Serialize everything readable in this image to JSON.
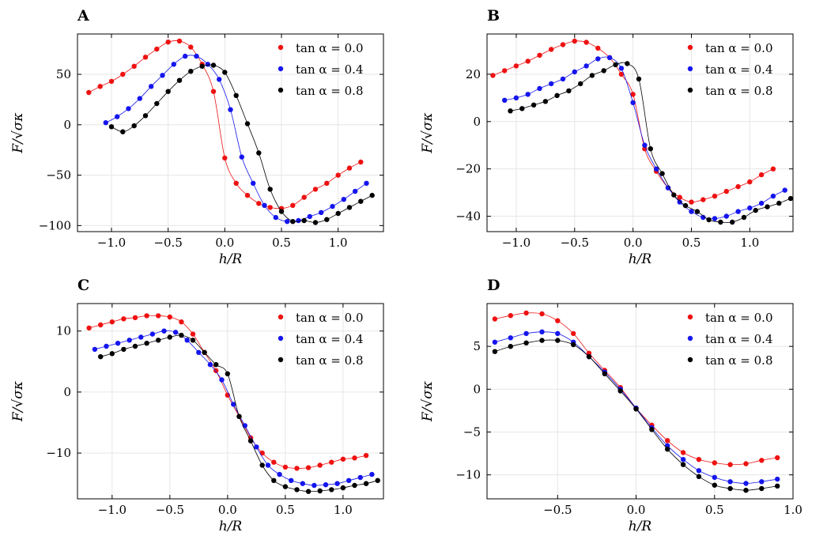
{
  "colors": {
    "red": "#ee1111",
    "blue": "#1515ee",
    "black": "#000000"
  },
  "chart_data": [
    {
      "panel": "A",
      "type": "line",
      "xlabel": "h/R",
      "ylabel": "F/√σκ",
      "xlim": [
        -1.3,
        1.4
      ],
      "ylim": [
        -106,
        90
      ],
      "xticks": [
        -1.0,
        -0.5,
        0.0,
        0.5,
        1.0
      ],
      "xtick_labels": [
        "−1.0",
        "−0.5",
        "0.0",
        "0.5",
        "1.0"
      ],
      "yticks": [
        -100,
        -50,
        0,
        50
      ],
      "ytick_labels": [
        "−100",
        "−50",
        "0",
        "50"
      ],
      "legend_position": "top-right",
      "series": [
        {
          "name": "tan α = 0.0",
          "color": "#ee1111",
          "x": [
            -1.2,
            -1.1,
            -1.0,
            -0.9,
            -0.8,
            -0.7,
            -0.6,
            -0.5,
            -0.4,
            -0.3,
            -0.2,
            -0.1,
            0.0,
            0.1,
            0.2,
            0.3,
            0.4,
            0.5,
            0.6,
            0.7,
            0.8,
            0.9,
            1.0,
            1.1,
            1.2
          ],
          "y": [
            32,
            38,
            43,
            50,
            58,
            67,
            75,
            82,
            83,
            77,
            60,
            33,
            -33,
            -58,
            -70,
            -78,
            -82,
            -83,
            -80,
            -72,
            -64,
            -58,
            -50,
            -43,
            -37
          ]
        },
        {
          "name": "tan α = 0.4",
          "color": "#1515ee",
          "x": [
            -1.05,
            -0.95,
            -0.85,
            -0.75,
            -0.65,
            -0.55,
            -0.45,
            -0.35,
            -0.25,
            -0.15,
            -0.05,
            0.05,
            0.15,
            0.25,
            0.35,
            0.45,
            0.55,
            0.65,
            0.75,
            0.85,
            0.95,
            1.05,
            1.15,
            1.25
          ],
          "y": [
            2,
            8,
            16,
            26,
            38,
            49,
            60,
            68,
            68,
            60,
            45,
            15,
            -32,
            -58,
            -80,
            -92,
            -96,
            -95,
            -91,
            -87,
            -81,
            -74,
            -66,
            -58
          ]
        },
        {
          "name": "tan α = 0.8",
          "color": "#000000",
          "x": [
            -1.0,
            -0.9,
            -0.8,
            -0.7,
            -0.6,
            -0.5,
            -0.4,
            -0.3,
            -0.2,
            -0.1,
            0.0,
            0.1,
            0.2,
            0.3,
            0.4,
            0.5,
            0.6,
            0.7,
            0.8,
            0.9,
            1.0,
            1.1,
            1.2,
            1.3
          ],
          "y": [
            -2,
            -7,
            -1,
            9,
            21,
            33,
            44,
            53,
            58,
            59,
            52,
            29,
            1,
            -28,
            -64,
            -86,
            -96,
            -95,
            -97,
            -94,
            -88,
            -82,
            -76,
            -70
          ]
        }
      ]
    },
    {
      "panel": "B",
      "type": "line",
      "xlabel": "h/R",
      "ylabel": "F/√σκ",
      "xlim": [
        -1.25,
        1.37
      ],
      "ylim": [
        -46.5,
        37
      ],
      "xticks": [
        -1.0,
        -0.5,
        0.0,
        0.5,
        1.0
      ],
      "xtick_labels": [
        "−1.0",
        "−0.5",
        "0.0",
        "0.5",
        "1.0"
      ],
      "yticks": [
        -40,
        -20,
        0,
        20
      ],
      "ytick_labels": [
        "−40",
        "−20",
        "0",
        "20"
      ],
      "legend_position": "top-right",
      "series": [
        {
          "name": "tan α = 0.0",
          "color": "#ee1111",
          "x": [
            -1.2,
            -1.1,
            -1.0,
            -0.9,
            -0.8,
            -0.7,
            -0.6,
            -0.5,
            -0.4,
            -0.3,
            -0.2,
            -0.1,
            0.0,
            0.1,
            0.2,
            0.3,
            0.4,
            0.5,
            0.6,
            0.7,
            0.8,
            0.9,
            1.0,
            1.1,
            1.2
          ],
          "y": [
            19.5,
            21.5,
            23.5,
            25.5,
            28,
            30.5,
            32.5,
            34,
            33.5,
            31,
            27,
            20,
            11.5,
            -11.5,
            -21,
            -28,
            -32,
            -34,
            -33,
            -31.5,
            -29.5,
            -27.5,
            -25.5,
            -22.5,
            -20
          ]
        },
        {
          "name": "tan α = 0.4",
          "color": "#1515ee",
          "x": [
            -1.1,
            -1.0,
            -0.9,
            -0.8,
            -0.7,
            -0.6,
            -0.5,
            -0.4,
            -0.3,
            -0.2,
            -0.1,
            0.0,
            0.1,
            0.2,
            0.3,
            0.4,
            0.5,
            0.6,
            0.7,
            0.8,
            0.9,
            1.0,
            1.1,
            1.2,
            1.3
          ],
          "y": [
            9,
            10,
            11.5,
            14,
            16,
            18,
            21,
            23.5,
            26.5,
            27,
            22.5,
            8,
            -10,
            -20,
            -28,
            -34,
            -38,
            -40.5,
            -41,
            -40,
            -38,
            -36.5,
            -34.5,
            -31.5,
            -29
          ]
        },
        {
          "name": "tan α = 0.8",
          "color": "#000000",
          "x": [
            -1.05,
            -0.95,
            -0.85,
            -0.75,
            -0.65,
            -0.55,
            -0.45,
            -0.35,
            -0.25,
            -0.15,
            -0.05,
            0.05,
            0.15,
            0.25,
            0.35,
            0.45,
            0.55,
            0.65,
            0.75,
            0.85,
            0.95,
            1.05,
            1.15,
            1.25,
            1.35
          ],
          "y": [
            4.5,
            5.5,
            7,
            8.5,
            11,
            13,
            16,
            19.5,
            21.5,
            24,
            24.5,
            18,
            -11.5,
            -22,
            -31,
            -35.5,
            -38,
            -41.5,
            -42.5,
            -42.5,
            -40.5,
            -37.5,
            -36,
            -34.5,
            -32.5
          ]
        }
      ]
    },
    {
      "panel": "C",
      "type": "line",
      "xlabel": "h/R",
      "ylabel": "F/√σκ",
      "xlim": [
        -1.3,
        1.35
      ],
      "ylim": [
        -17.5,
        14.5
      ],
      "xticks": [
        -1.0,
        -0.5,
        0.0,
        0.5,
        1.0
      ],
      "xtick_labels": [
        "−1.0",
        "−0.5",
        "0.0",
        "0.5",
        "1.0"
      ],
      "yticks": [
        -10,
        0,
        10
      ],
      "ytick_labels": [
        "−10",
        "0",
        "10"
      ],
      "legend_position": "top-right",
      "series": [
        {
          "name": "tan α = 0.0",
          "color": "#ee1111",
          "x": [
            -1.2,
            -1.1,
            -1.0,
            -0.9,
            -0.8,
            -0.7,
            -0.6,
            -0.5,
            -0.4,
            -0.3,
            -0.2,
            -0.1,
            0.0,
            0.1,
            0.2,
            0.3,
            0.4,
            0.5,
            0.6,
            0.7,
            0.8,
            0.9,
            1.0,
            1.1,
            1.2
          ],
          "y": [
            10.5,
            11,
            11.5,
            12,
            12.2,
            12.5,
            12.5,
            12.3,
            11.5,
            9.5,
            6.5,
            3.5,
            -0.5,
            -4,
            -7.5,
            -10,
            -11.5,
            -12.3,
            -12.5,
            -12.4,
            -12,
            -11.5,
            -11,
            -10.8,
            -10.4
          ]
        },
        {
          "name": "tan α = 0.4",
          "color": "#1515ee",
          "x": [
            -1.15,
            -1.05,
            -0.95,
            -0.85,
            -0.75,
            -0.65,
            -0.55,
            -0.45,
            -0.35,
            -0.25,
            -0.15,
            -0.05,
            0.05,
            0.15,
            0.25,
            0.35,
            0.45,
            0.55,
            0.65,
            0.75,
            0.85,
            0.95,
            1.05,
            1.15,
            1.25
          ],
          "y": [
            7,
            7.5,
            8,
            8.5,
            9,
            9.5,
            10,
            9.8,
            8.5,
            6.5,
            4.5,
            2,
            -2,
            -5.5,
            -9,
            -12,
            -13.5,
            -14.5,
            -15,
            -15.3,
            -15.2,
            -15,
            -14.5,
            -14,
            -13.5
          ]
        },
        {
          "name": "tan α = 0.8",
          "color": "#000000",
          "x": [
            -1.1,
            -1.0,
            -0.9,
            -0.8,
            -0.7,
            -0.6,
            -0.5,
            -0.4,
            -0.3,
            -0.2,
            -0.1,
            0.0,
            0.1,
            0.2,
            0.3,
            0.4,
            0.5,
            0.6,
            0.7,
            0.8,
            0.9,
            1.0,
            1.1,
            1.2,
            1.3
          ],
          "y": [
            5.8,
            6.3,
            7,
            7.5,
            8,
            8.5,
            9,
            9.3,
            8.5,
            6.5,
            4.5,
            3,
            -4,
            -8,
            -12,
            -14.5,
            -15.5,
            -16,
            -16.3,
            -16.2,
            -16,
            -15.7,
            -15.3,
            -15,
            -14.5
          ]
        }
      ]
    },
    {
      "panel": "D",
      "type": "line",
      "xlabel": "h/R",
      "ylabel": "F/√σκ",
      "xlim": [
        -0.95,
        1.0
      ],
      "ylim": [
        -12.8,
        10
      ],
      "xticks": [
        -0.5,
        0.0,
        0.5,
        1.0
      ],
      "xtick_labels": [
        "−0.5",
        "0.0",
        "0.5",
        "1.0"
      ],
      "yticks": [
        -10,
        -5,
        0,
        5
      ],
      "ytick_labels": [
        "−10",
        "−5",
        "0",
        "5"
      ],
      "legend_position": "top-right",
      "series": [
        {
          "name": "tan α = 0.0",
          "color": "#ee1111",
          "x": [
            -0.9,
            -0.8,
            -0.7,
            -0.6,
            -0.5,
            -0.4,
            -0.3,
            -0.2,
            -0.1,
            0.0,
            0.1,
            0.2,
            0.3,
            0.4,
            0.5,
            0.6,
            0.7,
            0.8,
            0.9
          ],
          "y": [
            8.2,
            8.6,
            8.9,
            8.8,
            8,
            6.5,
            4.2,
            2.2,
            0.2,
            -2.2,
            -4.2,
            -6,
            -7.4,
            -8.2,
            -8.6,
            -8.8,
            -8.7,
            -8.3,
            -8
          ]
        },
        {
          "name": "tan α = 0.4",
          "color": "#1515ee",
          "x": [
            -0.9,
            -0.8,
            -0.7,
            -0.6,
            -0.5,
            -0.4,
            -0.3,
            -0.2,
            -0.1,
            0.0,
            0.1,
            0.2,
            0.3,
            0.4,
            0.5,
            0.6,
            0.7,
            0.8,
            0.9
          ],
          "y": [
            5.5,
            6,
            6.5,
            6.7,
            6.5,
            5.5,
            3.8,
            2,
            0,
            -2.2,
            -4.5,
            -6.6,
            -8.2,
            -9.5,
            -10.3,
            -10.8,
            -11,
            -10.8,
            -10.5
          ]
        },
        {
          "name": "tan α = 0.8",
          "color": "#000000",
          "x": [
            -0.9,
            -0.8,
            -0.7,
            -0.6,
            -0.5,
            -0.4,
            -0.3,
            -0.2,
            -0.1,
            0.0,
            0.1,
            0.2,
            0.3,
            0.4,
            0.5,
            0.6,
            0.7,
            0.8,
            0.9
          ],
          "y": [
            4.4,
            5,
            5.4,
            5.7,
            5.7,
            5.2,
            3.8,
            1.8,
            -0.2,
            -2.3,
            -4.7,
            -7,
            -8.8,
            -10.2,
            -11.2,
            -11.6,
            -11.8,
            -11.6,
            -11.3
          ]
        }
      ]
    }
  ]
}
